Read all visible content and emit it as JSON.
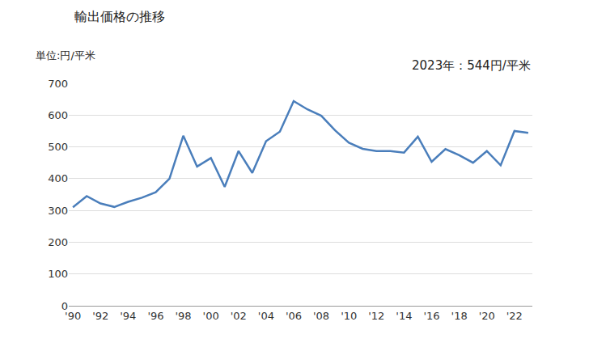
{
  "chart_data": {
    "type": "line",
    "title": "輸出価格の推移",
    "y_label": "単位:円/平米",
    "annotation": "2023年：544円/平米",
    "categories": [
      "'90",
      null,
      "'92",
      null,
      "'94",
      null,
      "'96",
      null,
      "'98",
      null,
      "'00",
      null,
      "'02",
      null,
      "'04",
      null,
      "'06",
      null,
      "'08",
      null,
      "'10",
      null,
      "'12",
      null,
      "'14",
      null,
      "'16",
      null,
      "'18",
      null,
      "'20",
      null,
      "'22",
      null
    ],
    "values": [
      310,
      345,
      322,
      311,
      327,
      340,
      357,
      400,
      535,
      438,
      465,
      374,
      487,
      418,
      518,
      548,
      644,
      618,
      598,
      552,
      513,
      494,
      487,
      487,
      482,
      532,
      453,
      493,
      474,
      450,
      487,
      442,
      550,
      544
    ],
    "color": "#4a7ebb",
    "ylim": [
      0,
      700
    ],
    "yticks": [
      0,
      100,
      200,
      300,
      400,
      500,
      600,
      700
    ],
    "grid": true
  }
}
